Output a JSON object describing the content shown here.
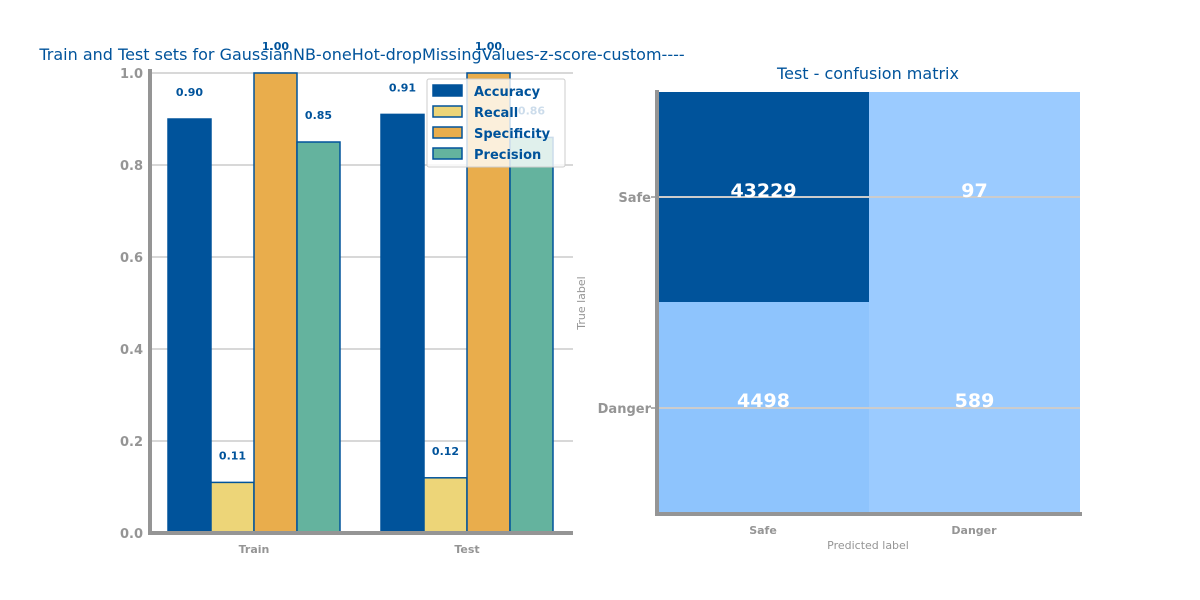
{
  "chart_data": [
    {
      "type": "bar",
      "title": "Train and Test sets for GaussianNB-oneHot-dropMissingValues-z-score-custom----",
      "categories": [
        "Train",
        "Test"
      ],
      "series": [
        {
          "name": "Accuracy",
          "values": [
            0.9,
            0.91
          ],
          "color": "#00539b"
        },
        {
          "name": "Recall",
          "values": [
            0.11,
            0.12
          ],
          "color": "#edd578"
        },
        {
          "name": "Specificity",
          "values": [
            1.0,
            1.0
          ],
          "color": "#e9ad4c"
        },
        {
          "name": "Precision",
          "values": [
            0.85,
            0.86
          ],
          "color": "#64b39e"
        }
      ],
      "labels": [
        [
          "0.90",
          "0.91"
        ],
        [
          "0.11",
          "0.12"
        ],
        [
          "1.00",
          "1.00"
        ],
        [
          "0.85",
          "0.86"
        ]
      ],
      "ylim": [
        0,
        1
      ],
      "yticks": [
        "0.0",
        "0.2",
        "0.4",
        "0.6",
        "0.8",
        "1.0"
      ],
      "xlabel": "",
      "ylabel": "",
      "grid": true,
      "legend": "top-right",
      "edge_color": "#00539b"
    },
    {
      "type": "heatmap",
      "title": "Test - confusion matrix",
      "row_labels": [
        "Safe",
        "Danger"
      ],
      "col_labels": [
        "Safe",
        "Danger"
      ],
      "values": [
        [
          43229,
          97
        ],
        [
          4498,
          589
        ]
      ],
      "value_labels": [
        [
          "43229",
          "97"
        ],
        [
          "4498",
          "589"
        ]
      ],
      "xlabel": "Predicted label",
      "ylabel": "True label",
      "colors": {
        "high": "#00539b",
        "low": "#9bcbff",
        "mid": "#8ec4fd"
      }
    }
  ]
}
